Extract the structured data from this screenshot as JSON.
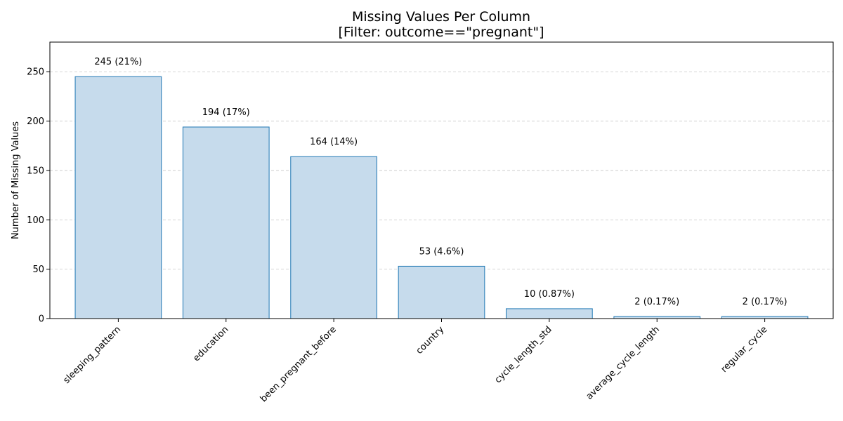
{
  "chart_data": {
    "type": "bar",
    "title": [
      "Missing Values Per Column",
      "[Filter: outcome==\"pregnant\"]"
    ],
    "xlabel": "",
    "ylabel": "Number of Missing Values",
    "ylim": [
      0,
      280
    ],
    "yticks": [
      0,
      50,
      100,
      150,
      200,
      250
    ],
    "grid": "y",
    "categories": [
      "sleeping_pattern",
      "education",
      "been_pregnant_before",
      "country",
      "cycle_length_std",
      "average_cycle_length",
      "regular_cycle"
    ],
    "values": [
      245,
      194,
      164,
      53,
      10,
      2,
      2
    ],
    "labels": [
      "245 (21%)",
      "194 (17%)",
      "164 (14%)",
      "53 (4.6%)",
      "10 (0.87%)",
      "2 (0.17%)",
      "2 (0.17%)"
    ],
    "colors": {
      "bar_fill": "#c6dbec",
      "bar_edge": "#1f77b4"
    }
  }
}
